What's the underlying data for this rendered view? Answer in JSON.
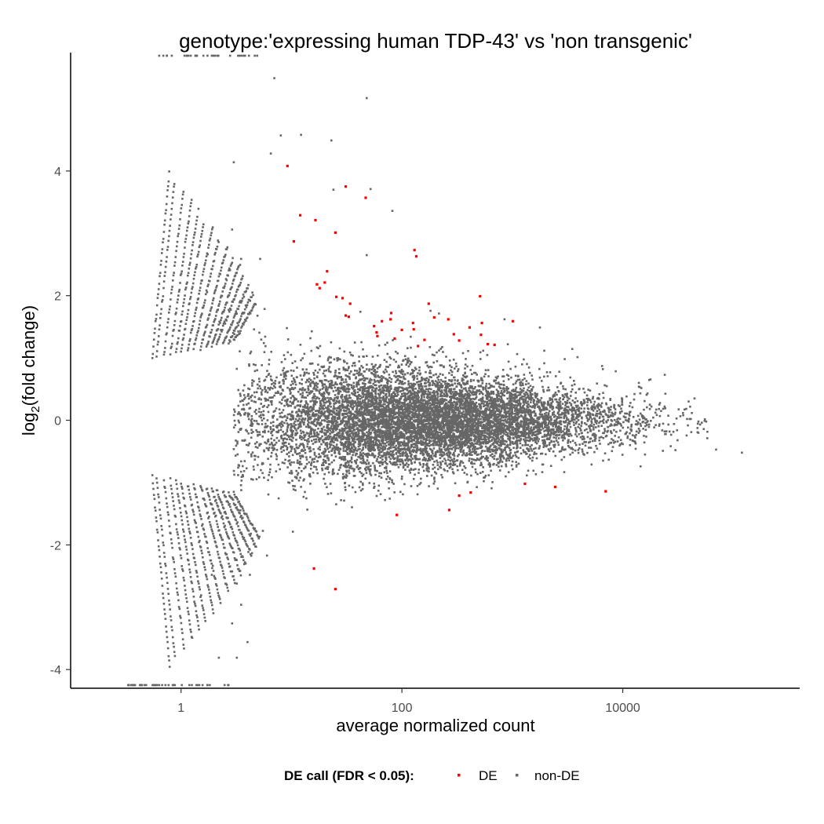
{
  "chart_data": {
    "type": "scatter",
    "title": "genotype:'expressing human TDP-43' vs 'non transgenic'",
    "xlabel": "average normalized count",
    "ylabel_main": "log",
    "ylabel_sub": "2",
    "ylabel_tail": "(fold change)",
    "x_scale": "log10",
    "xlim": [
      0.1,
      400000
    ],
    "ylim": [
      -4.3,
      5.9
    ],
    "x_ticks": [
      {
        "value": 1,
        "label": "1"
      },
      {
        "value": 100,
        "label": "100"
      },
      {
        "value": 10000,
        "label": "10000"
      }
    ],
    "y_ticks": [
      {
        "value": -4,
        "label": "-4"
      },
      {
        "value": -2,
        "label": "-2"
      },
      {
        "value": 0,
        "label": "0"
      },
      {
        "value": 2,
        "label": "2"
      },
      {
        "value": 4,
        "label": "4"
      }
    ],
    "grid": false,
    "legend": {
      "position": "bottom",
      "title": "DE call (FDR < 0.05):",
      "entries": [
        {
          "label": "DE",
          "color": "#ff0000"
        },
        {
          "label": "non-DE",
          "color": "#666666"
        }
      ]
    },
    "series": [
      {
        "name": "DE",
        "color": "#ff0000",
        "points": [
          [
            9.2,
            4.08
          ],
          [
            31,
            3.75
          ],
          [
            47,
            3.57
          ],
          [
            12,
            3.29
          ],
          [
            16.5,
            3.21
          ],
          [
            10.5,
            2.87
          ],
          [
            25,
            3.01
          ],
          [
            130,
            2.73
          ],
          [
            135,
            2.63
          ],
          [
            21,
            2.39
          ],
          [
            17,
            2.18
          ],
          [
            18,
            2.12
          ],
          [
            20,
            2.21
          ],
          [
            25.5,
            1.98
          ],
          [
            29,
            1.96
          ],
          [
            34,
            1.87
          ],
          [
            31,
            1.68
          ],
          [
            33,
            1.66
          ],
          [
            66,
            1.59
          ],
          [
            80,
            1.72
          ],
          [
            79,
            1.62
          ],
          [
            56,
            1.51
          ],
          [
            59,
            1.41
          ],
          [
            60,
            1.35
          ],
          [
            100,
            1.45
          ],
          [
            86,
            1.31
          ],
          [
            126,
            1.56
          ],
          [
            128,
            1.46
          ],
          [
            175,
            1.87
          ],
          [
            196,
            1.65
          ],
          [
            263,
            1.62
          ],
          [
            295,
            1.38
          ],
          [
            330,
            1.28
          ],
          [
            410,
            1.49
          ],
          [
            510,
            1.99
          ],
          [
            530,
            1.56
          ],
          [
            520,
            1.37
          ],
          [
            600,
            1.22
          ],
          [
            690,
            1.21
          ],
          [
            1010,
            1.59
          ],
          [
            140,
            1.19
          ],
          [
            160,
            1.29
          ],
          [
            268,
            -1.44
          ],
          [
            330,
            -1.21
          ],
          [
            420,
            -1.16
          ],
          [
            1300,
            -1.02
          ],
          [
            2440,
            -1.07
          ],
          [
            7000,
            -1.14
          ],
          [
            90,
            -1.52
          ],
          [
            16,
            -2.38
          ],
          [
            25,
            -2.71
          ]
        ]
      },
      {
        "name": "non-DE",
        "color": "#666666",
        "cloud": {
          "x_range": [
            3,
            60000
          ],
          "center_logx": 2.2,
          "count": 9000,
          "spread_at_low": 0.55,
          "spread_at_high": 0.16
        },
        "streaks_start_x": [
          0.55,
          0.6,
          0.7,
          0.8,
          0.9,
          1.0,
          1.15,
          1.3,
          1.5,
          1.7,
          1.9,
          2.1,
          2.4,
          2.7,
          3.0
        ],
        "outliers": [
          [
            7.0,
            5.49
          ],
          [
            48,
            5.17
          ],
          [
            8.0,
            4.57
          ],
          [
            12.2,
            4.58
          ],
          [
            23,
            4.49
          ],
          [
            6.5,
            4.28
          ],
          [
            24,
            3.7
          ],
          [
            52,
            3.71
          ],
          [
            82,
            3.36
          ],
          [
            3.0,
            4.14
          ],
          [
            2.9,
            3.06
          ],
          [
            48,
            2.65
          ],
          [
            3.5,
            2.59
          ],
          [
            5.2,
            2.59
          ],
          [
            850,
            1.62
          ],
          [
            6500,
            0.87
          ],
          [
            14000,
            0.6
          ],
          [
            24000,
            0.73
          ],
          [
            120000,
            -0.52
          ],
          [
            70000,
            -0.47
          ],
          [
            30000,
            -0.48
          ],
          [
            9000,
            -0.34
          ],
          [
            14500,
            -0.74
          ],
          [
            2.2,
            -3.81
          ],
          [
            3.2,
            -3.81
          ],
          [
            4.0,
            -3.56
          ],
          [
            3.5,
            -2.96
          ],
          [
            3.2,
            -2.62
          ],
          [
            6.0,
            -2.17
          ],
          [
            4.2,
            -2.48
          ],
          [
            2.9,
            -3.26
          ],
          [
            1.9,
            -2.48
          ]
        ]
      }
    ]
  }
}
